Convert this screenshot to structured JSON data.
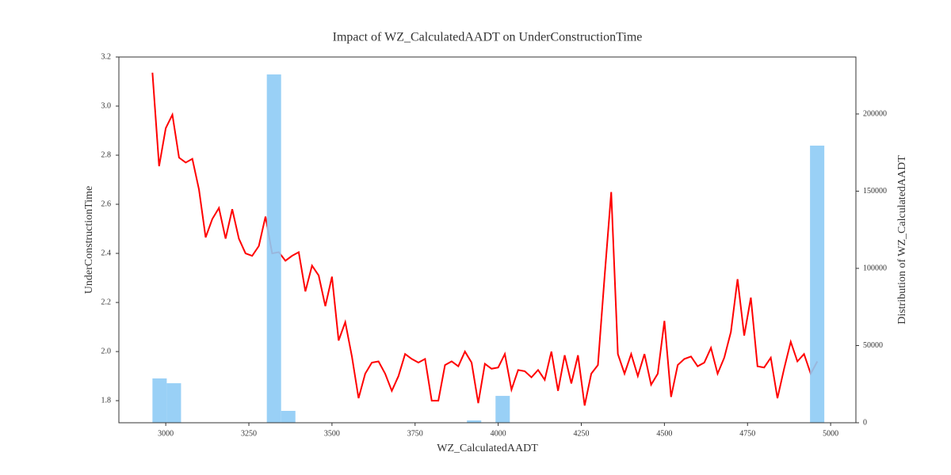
{
  "chart_data": {
    "type": "line",
    "title": "Impact of WZ_CalculatedAADT on UnderConstructionTime",
    "xlabel": "WZ_CalculatedAADT",
    "ylabel": "UnderConstructionTime",
    "y2label": "Distribution of WZ_CalculatedAADT",
    "xlim": [
      2859,
      5076
    ],
    "ylim": [
      1.71,
      3.2
    ],
    "y2lim": [
      0,
      236900
    ],
    "xticks": [
      3000,
      3250,
      3500,
      3750,
      4000,
      4250,
      4500,
      4750,
      5000
    ],
    "yticks": [
      1.8,
      {
        "value": 2,
        "label": "2.0"
      },
      2.2,
      2.4,
      2.6,
      2.8,
      {
        "value": 3,
        "label": "3.0"
      },
      3.2
    ],
    "y2ticks": [
      0,
      50000,
      100000,
      150000,
      200000
    ],
    "x": [
      2960,
      2980,
      3000,
      3020,
      3040,
      3060,
      3080,
      3100,
      3120,
      3140,
      3160,
      3180,
      3200,
      3220,
      3240,
      3260,
      3280,
      3300,
      3320,
      3340,
      3360,
      3380,
      3400,
      3420,
      3440,
      3460,
      3480,
      3500,
      3520,
      3540,
      3560,
      3580,
      3600,
      3620,
      3640,
      3660,
      3680,
      3700,
      3720,
      3740,
      3760,
      3780,
      3800,
      3820,
      3840,
      3860,
      3880,
      3900,
      3920,
      3940,
      3960,
      3980,
      4000,
      4020,
      4040,
      4060,
      4080,
      4100,
      4120,
      4140,
      4160,
      4180,
      4200,
      4220,
      4240,
      4260,
      4280,
      4300,
      4320,
      4340,
      4360,
      4380,
      4400,
      4420,
      4440,
      4460,
      4480,
      4500,
      4520,
      4540,
      4560,
      4580,
      4600,
      4620,
      4640,
      4660,
      4680,
      4700,
      4720,
      4740,
      4760,
      4780,
      4800,
      4820,
      4840,
      4860,
      4880,
      4900,
      4920,
      4940,
      4960
    ],
    "series": [
      {
        "type": "line",
        "color": "#ff0000",
        "values": [
          3.136,
          2.755,
          2.91,
          2.965,
          2.79,
          2.77,
          2.785,
          2.66,
          2.465,
          2.54,
          2.585,
          2.46,
          2.58,
          2.46,
          2.4,
          2.39,
          2.43,
          2.55,
          2.4,
          2.405,
          2.37,
          2.39,
          2.405,
          2.245,
          2.35,
          2.31,
          2.185,
          2.305,
          2.045,
          2.12,
          1.98,
          1.81,
          1.91,
          1.955,
          1.96,
          1.91,
          1.84,
          1.9,
          1.99,
          1.97,
          1.955,
          1.97,
          1.8,
          1.8,
          1.945,
          1.96,
          1.94,
          2.0,
          1.955,
          1.79,
          1.95,
          1.93,
          1.935,
          1.99,
          1.845,
          1.925,
          1.92,
          1.895,
          1.925,
          1.885,
          2.0,
          1.84,
          1.985,
          1.87,
          1.985,
          1.78,
          1.91,
          1.945,
          2.305,
          2.65,
          1.99,
          1.91,
          1.99,
          1.9,
          1.99,
          1.865,
          1.91,
          2.125,
          1.815,
          1.945,
          1.97,
          1.98,
          1.94,
          1.955,
          2.015,
          1.91,
          1.975,
          2.08,
          2.295,
          2.065,
          2.22,
          1.94,
          1.935,
          1.975,
          1.81,
          1.93,
          2.04,
          1.96,
          1.99,
          1.91,
          1.96
        ]
      },
      {
        "type": "histogram",
        "axis": "y2",
        "color": "#8ecbf5",
        "bins": [
          2960,
          3003,
          3046,
          3089,
          3132,
          3175,
          3218,
          3261,
          3304,
          3347,
          3390,
          3433,
          3476,
          3519,
          3562,
          3605,
          3648,
          3691,
          3734,
          3777,
          3820,
          3863,
          3906,
          3949,
          3992,
          4035,
          4078,
          4121,
          4164,
          4207,
          4250,
          4293,
          4336,
          4379,
          4422,
          4465,
          4508,
          4551,
          4594,
          4637,
          4680,
          4723,
          4766,
          4809,
          4852,
          4895,
          4938,
          4981
        ],
        "values": [
          28700,
          25600,
          0,
          0,
          0,
          0,
          0,
          0,
          225600,
          7700,
          0,
          0,
          0,
          0,
          0,
          0,
          0,
          0,
          0,
          0,
          0,
          0,
          1500,
          0,
          17400,
          0,
          0,
          0,
          0,
          0,
          0,
          0,
          0,
          0,
          0,
          0,
          0,
          0,
          0,
          0,
          0,
          0,
          0,
          0,
          0,
          0,
          179500
        ]
      }
    ]
  }
}
